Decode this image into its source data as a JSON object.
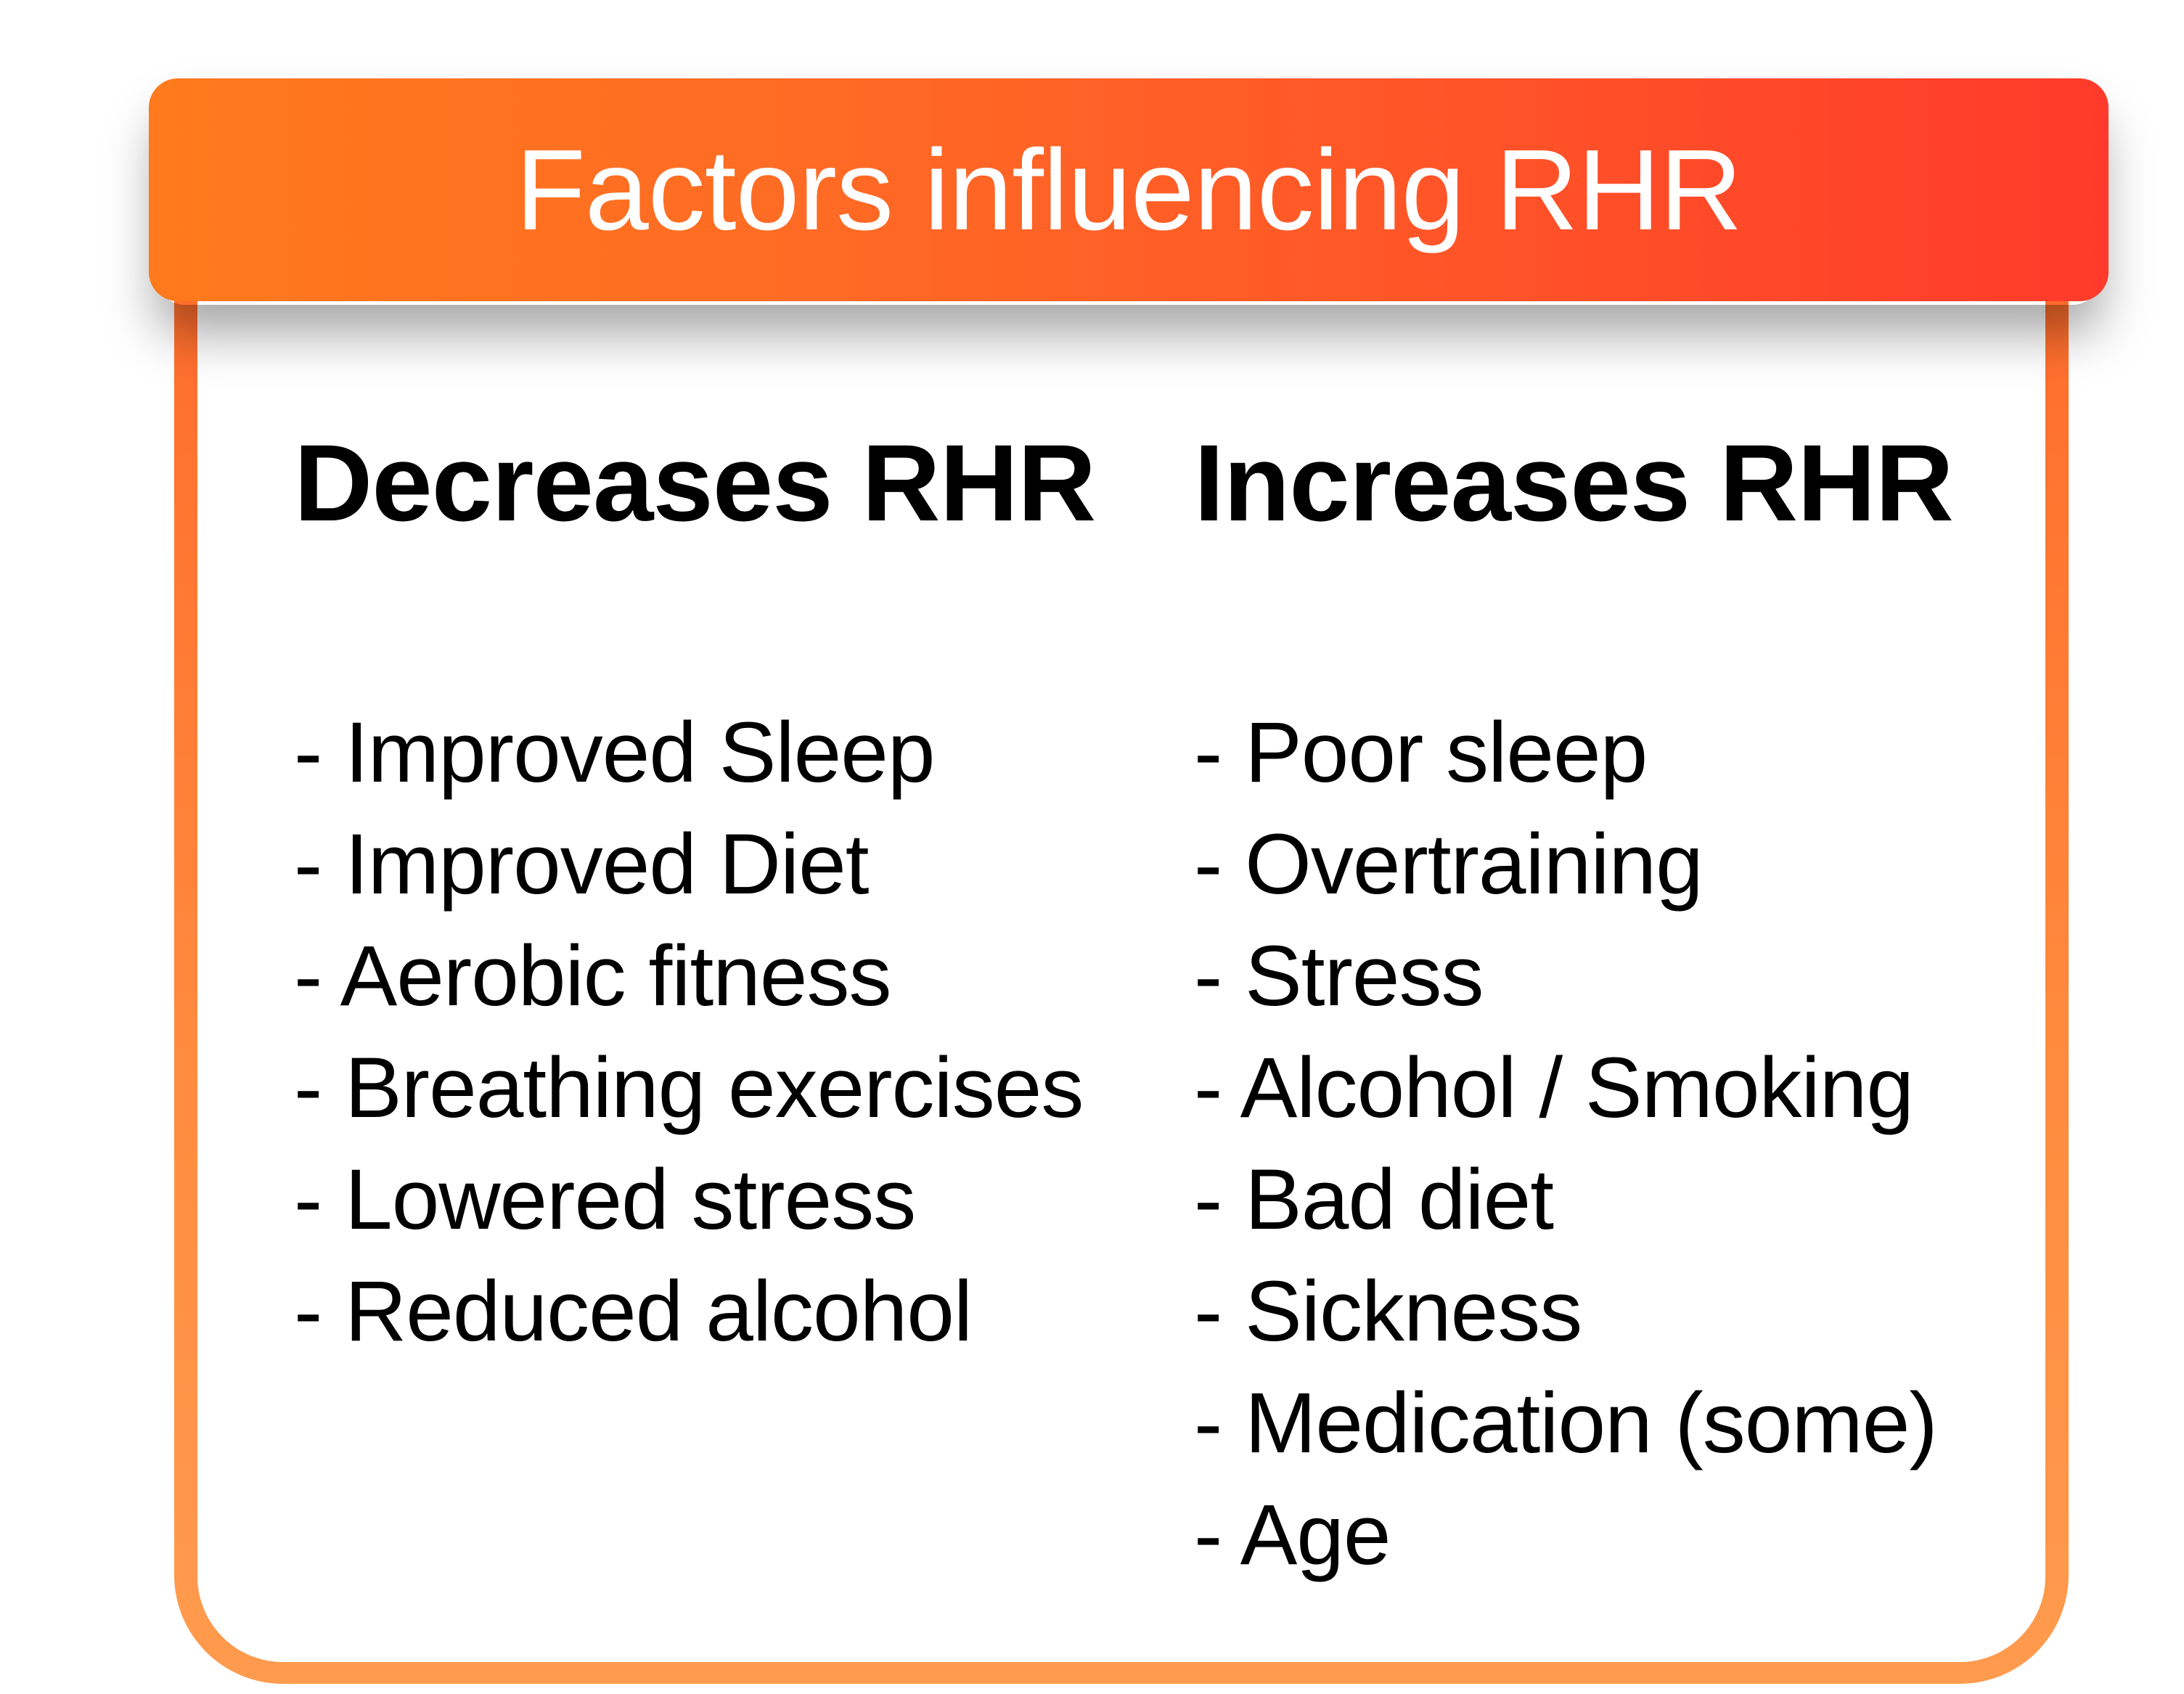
{
  "header": {
    "title": "Factors influencing RHR"
  },
  "decreases": {
    "heading": "Decreases RHR",
    "items": [
      "- Improved Sleep",
      "- Improved Diet",
      "- Aerobic fitness",
      "- Breathing exercises",
      "- Lowered stress",
      "- Reduced alcohol"
    ]
  },
  "increases": {
    "heading": "Increases RHR",
    "items": [
      "- Poor sleep",
      "- Overtraining",
      "- Stress",
      "- Alcohol / Smoking",
      "- Bad diet",
      "- Sickness",
      "- Medication (some)",
      "- Age"
    ]
  },
  "colors": {
    "accent_start": "#ff7a1c",
    "accent_end": "#ff3a2a",
    "frame": "#ff8a3e",
    "text": "#000000",
    "title_text": "#ffffff"
  }
}
